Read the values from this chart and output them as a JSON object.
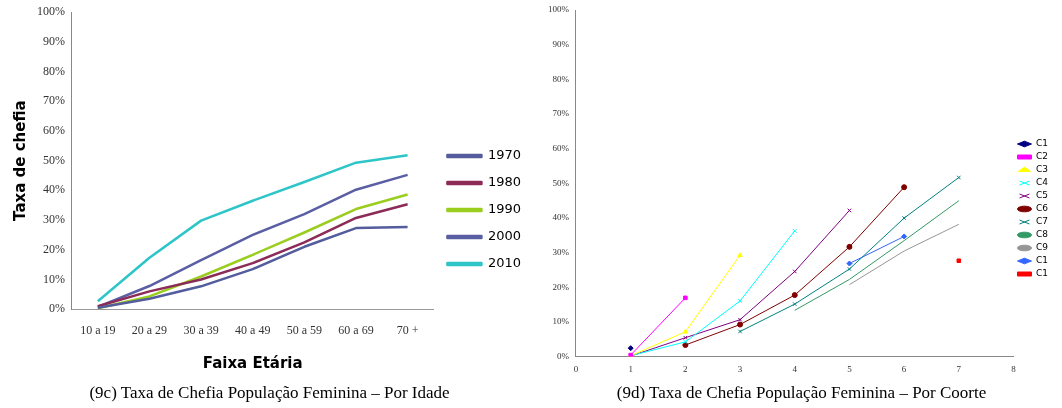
{
  "chart_data": [
    {
      "type": "line",
      "title": "(9c) Taxa de Chefia População Feminina – Por Idade",
      "xlabel": "Faixa Etária",
      "ylabel": "Taxa de chefia",
      "categories": [
        "10 a 19",
        "20 a 29",
        "30 a 39",
        "40 a 49",
        "50 a 59",
        "60 a 69",
        "70 +"
      ],
      "series": [
        {
          "name": "1970",
          "color": "#535c9c",
          "values": [
            0.5,
            3.5,
            7.7,
            13.5,
            21,
            27.3,
            27.7
          ]
        },
        {
          "name": "1980",
          "color": "#8c2a58",
          "values": [
            1.0,
            6.0,
            10.0,
            15.5,
            22.5,
            30.7,
            35.3
          ]
        },
        {
          "name": "1990",
          "color": "#9acd1e",
          "values": [
            0.3,
            4.3,
            11.0,
            18.3,
            25.8,
            33.7,
            38.6
          ]
        },
        {
          "name": "2000",
          "color": "#5a5fa4",
          "values": [
            0.8,
            7.8,
            16.5,
            25.0,
            32.0,
            40.2,
            45.2
          ]
        },
        {
          "name": "2010",
          "color": "#2ec5c8",
          "values": [
            2.7,
            17.3,
            29.8,
            36.5,
            42.8,
            49.3,
            51.8
          ]
        }
      ],
      "ylim": [
        0,
        100
      ],
      "yticks": [
        {
          "value": 0,
          "label": "0%"
        },
        {
          "value": 10,
          "label": "10%"
        },
        {
          "value": 20,
          "label": "20%"
        },
        {
          "value": 30,
          "label": "30%"
        },
        {
          "value": 40,
          "label": "40%"
        },
        {
          "value": 50,
          "label": "50%"
        },
        {
          "value": 60,
          "label": "60%"
        },
        {
          "value": 70,
          "label": "70%"
        },
        {
          "value": 80,
          "label": "80%"
        },
        {
          "value": 90,
          "label": "90%"
        },
        {
          "value": 100,
          "label": "100%"
        }
      ],
      "grid": false,
      "legend": "right",
      "marker": "none",
      "line_style": "solid"
    },
    {
      "type": "line",
      "title": "(9d) Taxa de Chefia População Feminina – Por Coorte",
      "series": [
        {
          "name": "C1",
          "color": "#000080",
          "marker": "diamond",
          "x": [
            1
          ],
          "values": [
            2.5
          ]
        },
        {
          "name": "C2",
          "color": "#ff00ff",
          "marker": "square",
          "x": [
            1,
            2
          ],
          "values": [
            0.5,
            17
          ]
        },
        {
          "name": "C3",
          "color": "#ffff00",
          "marker": "triangle",
          "x": [
            1,
            2,
            3
          ],
          "values": [
            0.3,
            7.2,
            29.3
          ]
        },
        {
          "name": "C4",
          "color": "#00ffff",
          "marker": "cross",
          "x": [
            1,
            2,
            3,
            4
          ],
          "values": [
            0.3,
            4.3,
            16.1,
            36.3
          ]
        },
        {
          "name": "C5",
          "color": "#800080",
          "marker": "cross",
          "x": [
            1,
            2,
            3,
            4,
            5
          ],
          "values": [
            0.2,
            5.5,
            10.7,
            24.6,
            42.2
          ]
        },
        {
          "name": "C6",
          "color": "#800000",
          "marker": "circle",
          "x": [
            2,
            3,
            4,
            5,
            6
          ],
          "values": [
            3.4,
            9.3,
            17.8,
            31.7,
            48.9
          ]
        },
        {
          "name": "C7",
          "color": "#008080",
          "marker": "cross",
          "x": [
            3,
            4,
            5,
            6,
            7
          ],
          "values": [
            7.3,
            15.2,
            25.3,
            40.0,
            51.7
          ]
        },
        {
          "name": "C8",
          "color": "#339966",
          "marker": "none",
          "x": [
            4,
            5,
            6,
            7
          ],
          "values": [
            13.4,
            22.3,
            33.5,
            45.0
          ]
        },
        {
          "name": "C9",
          "color": "#969696",
          "marker": "none",
          "x": [
            5,
            6,
            7
          ],
          "values": [
            20.8,
            30.5,
            38.2
          ]
        },
        {
          "name": "C1",
          "color": "#3366ff",
          "marker": "diamond",
          "x": [
            5,
            6
          ],
          "values": [
            26.9,
            34.7
          ]
        },
        {
          "name": "C1",
          "color": "#ff0000",
          "marker": "square",
          "x": [
            7
          ],
          "values": [
            27.7
          ]
        }
      ],
      "xlim": [
        0,
        8
      ],
      "xticks": [
        0,
        1,
        2,
        3,
        4,
        5,
        6,
        7,
        8
      ],
      "ylim": [
        0,
        100
      ],
      "yticks": [
        {
          "value": 0,
          "label": "0%"
        },
        {
          "value": 10,
          "label": "10%"
        },
        {
          "value": 20,
          "label": "20%"
        },
        {
          "value": 30,
          "label": "30%"
        },
        {
          "value": 40,
          "label": "40%"
        },
        {
          "value": 50,
          "label": "50%"
        },
        {
          "value": 60,
          "label": "60%"
        },
        {
          "value": 70,
          "label": "70%"
        },
        {
          "value": 80,
          "label": "80%"
        },
        {
          "value": 90,
          "label": "90%"
        },
        {
          "value": 100,
          "label": "100%"
        }
      ],
      "grid": false,
      "legend": "right",
      "line_style": "solid"
    }
  ]
}
